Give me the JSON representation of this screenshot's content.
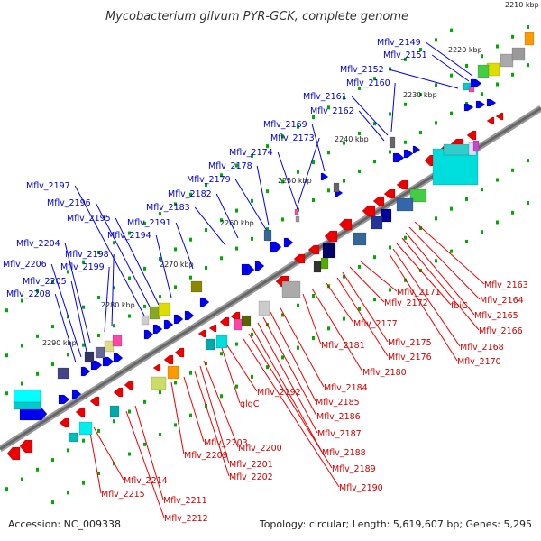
{
  "title": "Mycobacterium gilvum PYR-GCK, complete genome",
  "accession": "Accession: NC_009338",
  "summary": "Topology: circular; Length: 5,619,607 bp; Genes: 5,295",
  "kbp_ticks": [
    "2210 kbp",
    "2220 kbp",
    "2230 kbp",
    "2240 kbp",
    "2250 kbp",
    "2260 kbp",
    "2270 kbp",
    "2280 kbp",
    "2290 kbp"
  ],
  "top_labels": [
    "Mflv_2149",
    "Mflv_2151",
    "Mflv_2152",
    "Mflv_2160",
    "Mflv_2161",
    "Mflv_2162",
    "Mflv_2169",
    "Mflv_2173",
    "Mflv_2174",
    "Mflv_2178",
    "Mflv_2179",
    "Mflv_2182",
    "Mflv_2183",
    "Mflv_2191",
    "Mflv_2194",
    "Mflv_2195",
    "Mflv_2196",
    "Mflv_2197",
    "Mflv_2198",
    "Mflv_2199",
    "Mflv_2204",
    "Mflv_2205",
    "Mflv_2206",
    "Mflv_2208"
  ],
  "bottom_labels": [
    "Mflv_2163",
    "Mflv_2164",
    "Mflv_2165",
    "Mflv_2166",
    "fbiC",
    "Mflv_2168",
    "Mflv_2170",
    "Mflv_2171",
    "Mflv_2172",
    "Mflv_2175",
    "Mflv_2176",
    "Mflv_2177",
    "Mflv_2180",
    "Mflv_2181",
    "Mflv_2184",
    "Mflv_2185",
    "Mflv_2186",
    "Mflv_2187",
    "Mflv_2188",
    "Mflv_2189",
    "Mflv_2190",
    "Mflv_2192",
    "glgC",
    "Mflv_2200",
    "Mflv_2201",
    "Mflv_2202",
    "Mflv_2203",
    "Mflv_2209",
    "Mflv_2211",
    "Mflv_2212",
    "Mflv_2214",
    "Mflv_2215"
  ],
  "colors": {
    "forward": "#0000ee",
    "reverse": "#ee0000",
    "backbone": "#777777",
    "tick": "#00aa00",
    "leader_top": "#0000ee",
    "leader_bot": "#ee0000"
  }
}
